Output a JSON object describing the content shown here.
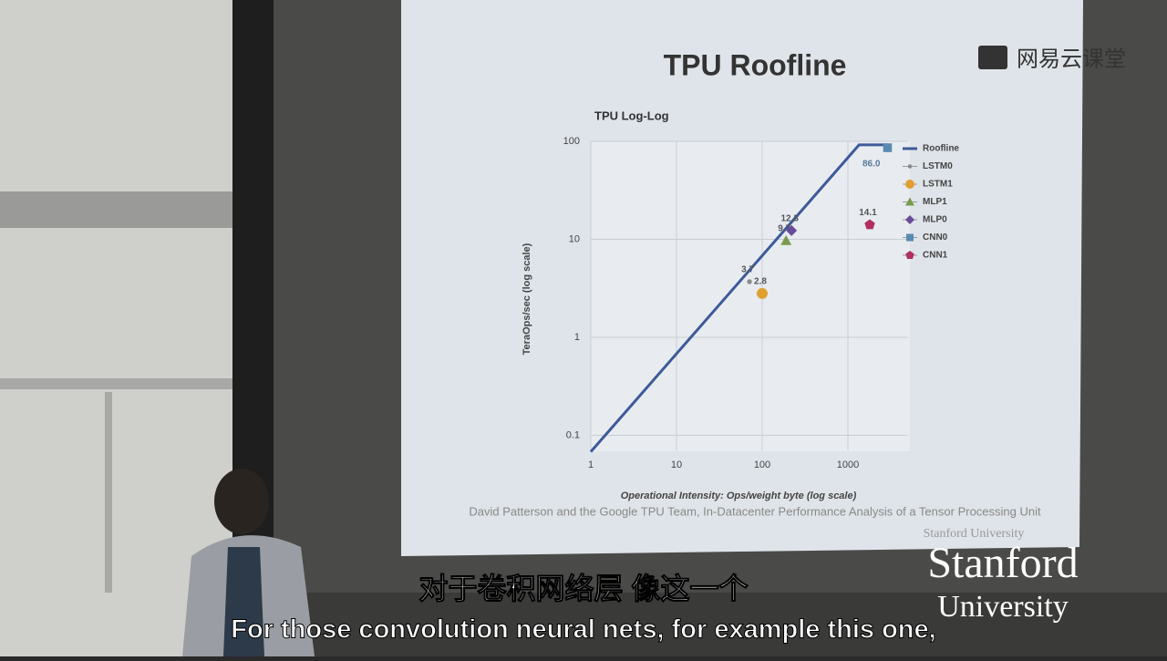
{
  "chart_data": {
    "type": "scatter",
    "title": "TPU Roofline",
    "subtitle": "TPU Log-Log",
    "x_label": "Operational Intensity: Ops/weight byte (log scale)",
    "y_label": "TeraOps/sec (log scale)",
    "xlim": [
      1,
      5000
    ],
    "ylim": [
      0.07,
      100
    ],
    "x_log": true,
    "y_log": true,
    "grid": true,
    "xticks": [
      1,
      10,
      100,
      1000
    ],
    "yticks": [
      0.1,
      1,
      10,
      100
    ],
    "legend": "right",
    "series": [
      {
        "name": "Roofline",
        "color": "#3d5a99",
        "marker": "line",
        "x": [
          1,
          1350,
          2900
        ],
        "values": [
          0.068,
          92,
          92
        ]
      },
      {
        "name": "LSTM0",
        "color": "#8a8a8a",
        "marker": "dot",
        "x": [
          71
        ],
        "values": [
          3.7
        ]
      },
      {
        "name": "LSTM1",
        "color": "#e0a030",
        "marker": "circle",
        "x": [
          100
        ],
        "values": [
          2.8
        ]
      },
      {
        "name": "MLP1",
        "color": "#7a9a50",
        "marker": "triangle",
        "x": [
          190
        ],
        "values": [
          9.7
        ]
      },
      {
        "name": "MLP0",
        "color": "#6a4a9a",
        "marker": "diamond",
        "x": [
          220
        ],
        "values": [
          12.3
        ]
      },
      {
        "name": "CNN0",
        "color": "#5a8ab0",
        "marker": "square",
        "x": [
          2900
        ],
        "values": [
          86
        ],
        "value_labels": [
          "86.0"
        ]
      },
      {
        "name": "CNN1",
        "color": "#b03060",
        "marker": "pentagon",
        "x": [
          1800
        ],
        "values": [
          14.1
        ]
      }
    ]
  },
  "slide": {
    "citation": "David Patterson and the Google TPU Team, In-Datacenter Performance Analysis of a Tensor Processing Unit",
    "footer": "Stanford University"
  },
  "watermark": "网易云课堂",
  "logo": {
    "line1": "Stanford",
    "line2": "University"
  },
  "subtitles": {
    "zh": "对于卷积网络层  像这一个",
    "en": "For those convolution neural nets, for example this one,"
  }
}
